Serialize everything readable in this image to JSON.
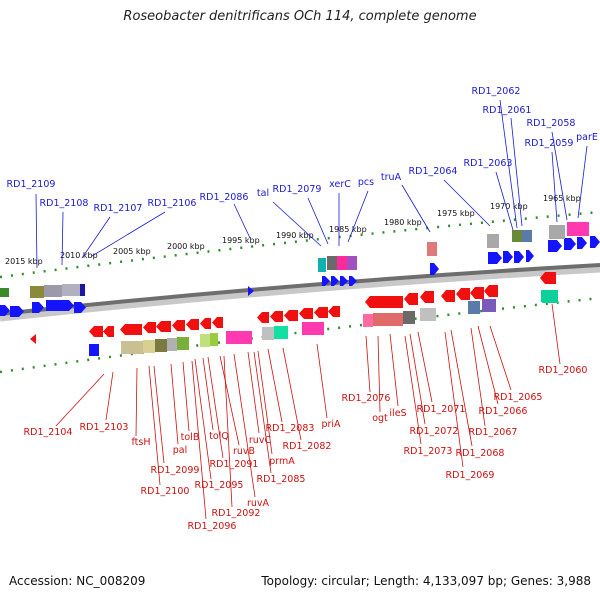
{
  "header": {
    "title": "Roseobacter denitrificans OCh 114, complete genome"
  },
  "footer": {
    "accession": "Accession: NC_008209",
    "summary": "Topology: circular; Length: 4,133,097 bp; Genes: 3,988"
  },
  "colors": {
    "top_label": "#1a1ad6",
    "bottom_label": "#d01010",
    "backbone": "#8a8a8a",
    "dots": "#2f8f2f",
    "blue": "#1414ff",
    "red": "#f01010"
  },
  "ticks": [
    "2015 kbp",
    "2010 kbp",
    "2005 kbp",
    "2000 kbp",
    "1995 kbp",
    "1990 kbp",
    "1985 kbp",
    "1980 kbp",
    "1975 kbp",
    "1970 kbp",
    "1965 kbp"
  ],
  "top_labels": [
    "RD1_2109",
    "RD1_2108",
    "RD1_2107",
    "RD1_2106",
    "RD1_2086",
    "tal",
    "RD1_2079",
    "xerC",
    "pcs",
    "truA",
    "RD1_2064",
    "RD1_2063",
    "RD1_2062",
    "RD1_2061",
    "RD1_2059",
    "RD1_2058",
    "parE"
  ],
  "bottom_labels": [
    "RD1_2104",
    "RD1_2103",
    "ftsH",
    "pal",
    "tolB",
    "RD1_2099",
    "RD1_2100",
    "tolQ",
    "ruvB",
    "RD1_2091",
    "RD1_2095",
    "RD1_2096",
    "RD1_2092",
    "ruvA",
    "RD1_2085",
    "prmA",
    "ruvC",
    "RD1_2083",
    "RD1_2082",
    "priA",
    "RD1_2076",
    "ogt",
    "ileS",
    "RD1_2072",
    "RD1_2073",
    "RD1_2071",
    "RD1_2068",
    "RD1_2069",
    "RD1_2067",
    "RD1_2066",
    "RD1_2065",
    "RD1_2060"
  ]
}
